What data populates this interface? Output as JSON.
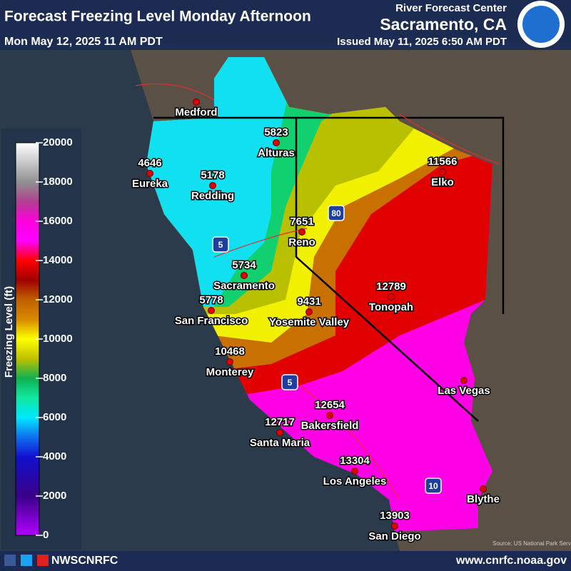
{
  "header": {
    "title": "Forecast Freezing Level Monday Afternoon",
    "valid_time": "Mon May 12, 2025 11 AM PDT",
    "center": "River Forecast Center",
    "location": "Sacramento, CA",
    "issued": "Issued May 11, 2025 6:50 AM PDT"
  },
  "legend": {
    "label": "Freezing Level (ft)",
    "ticks": [
      0,
      2000,
      4000,
      6000,
      8000,
      10000,
      12000,
      14000,
      16000,
      18000,
      20000
    ]
  },
  "cities": [
    {
      "name": "Medford"
    },
    {
      "name": "Alturas",
      "value": "5823"
    },
    {
      "name": "Eureka",
      "value": "4646"
    },
    {
      "name": "Redding",
      "value": "5178"
    },
    {
      "name": "Elko",
      "value": "11566"
    },
    {
      "name": "Reno",
      "value": "7651"
    },
    {
      "name": "Sacramento",
      "value": "5734"
    },
    {
      "name": "San Francisco",
      "value": "5778"
    },
    {
      "name": "Yosemite Valley",
      "value": "9431"
    },
    {
      "name": "Tonopah",
      "value": "12789"
    },
    {
      "name": "Monterey",
      "value": "10468"
    },
    {
      "name": "Las Vegas"
    },
    {
      "name": "Bakersfield",
      "value": "12654"
    },
    {
      "name": "Santa Maria",
      "value": "12717"
    },
    {
      "name": "Los Angeles",
      "value": "13304"
    },
    {
      "name": "Blythe"
    },
    {
      "name": "San Diego",
      "value": "13903"
    }
  ],
  "highways": [
    "5",
    "5",
    "80",
    "10"
  ],
  "source": "Source: US National Park Service",
  "footer": {
    "handle": "NWSCNRFC",
    "url": "www.cnrfc.noaa.gov"
  }
}
